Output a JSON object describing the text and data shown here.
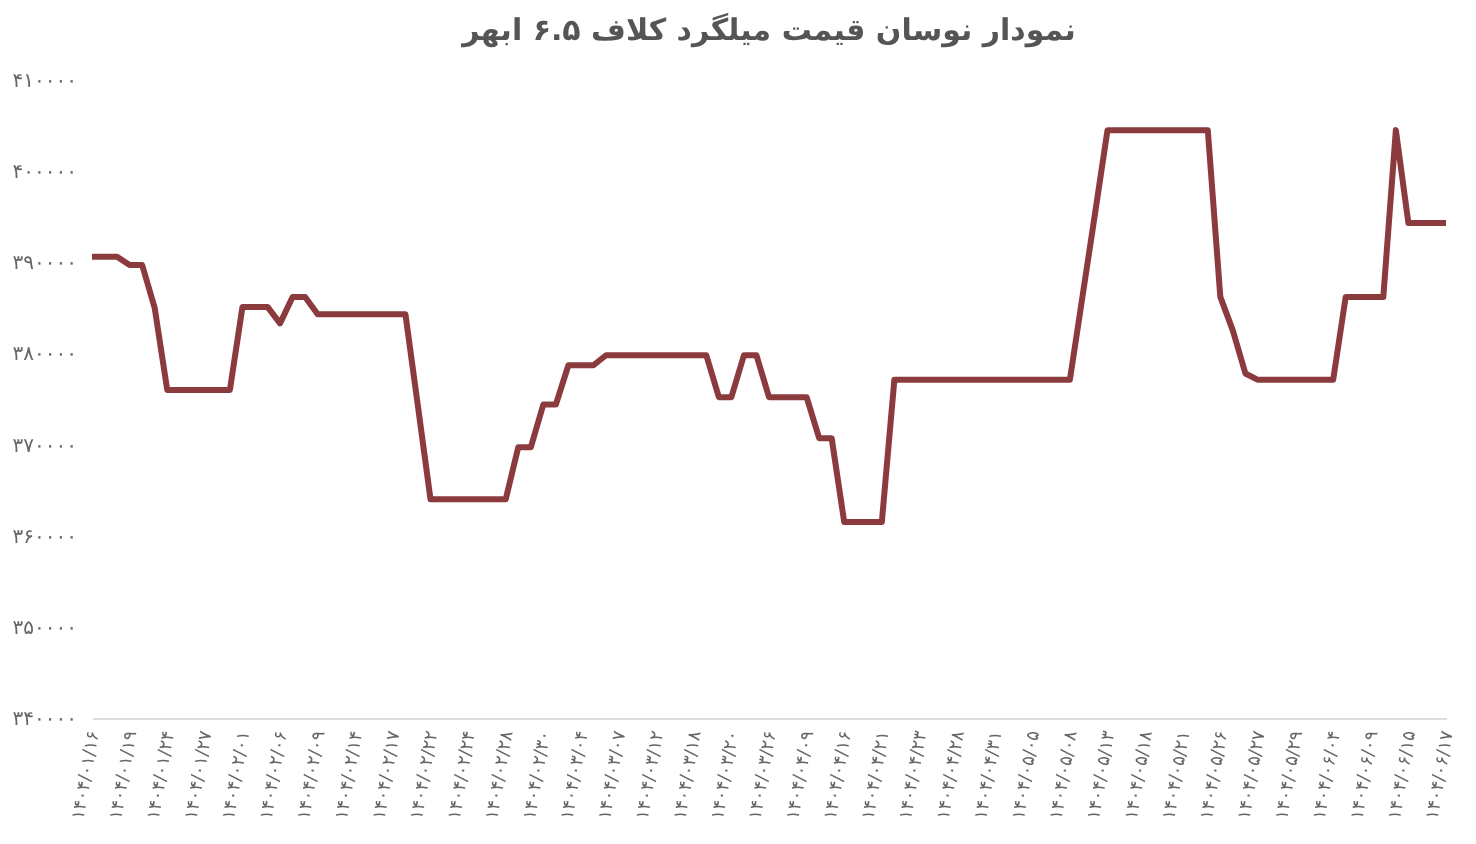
{
  "chart_data": {
    "type": "line",
    "title": "نمودار نوسان قیمت میلگرد کلاف ۶.۵  ابهر",
    "categories": [
      "۱۴۰۴/۰۱/۱۶",
      null,
      null,
      "۱۴۰۴/۰۱/۱۹",
      null,
      null,
      "۱۴۰۴/۰۱/۲۴",
      null,
      null,
      "۱۴۰۴/۰۱/۲۷",
      null,
      null,
      "۱۴۰۴/۰۲/۰۱",
      null,
      null,
      "۱۴۰۴/۰۲/۰۶",
      null,
      null,
      "۱۴۰۴/۰۲/۰۹",
      null,
      null,
      "۱۴۰۴/۰۲/۱۴",
      null,
      null,
      "۱۴۰۴/۰۲/۱۷",
      null,
      null,
      "۱۴۰۴/۰۲/۲۲",
      null,
      null,
      "۱۴۰۴/۰۲/۲۴",
      null,
      null,
      "۱۴۰۴/۰۲/۲۸",
      null,
      null,
      "۱۴۰۴/۰۲/۳۰",
      null,
      null,
      "۱۴۰۴/۰۳/۰۴",
      null,
      null,
      "۱۴۰۴/۰۳/۰۷",
      null,
      null,
      "۱۴۰۴/۰۳/۱۲",
      null,
      null,
      "۱۴۰۴/۰۳/۱۸",
      null,
      null,
      "۱۴۰۴/۰۳/۲۰",
      null,
      null,
      "۱۴۰۴/۰۳/۲۶",
      null,
      null,
      "۱۴۰۴/۰۴/۰۹",
      null,
      null,
      "۱۴۰۴/۰۴/۱۶",
      null,
      null,
      "۱۴۰۴/۰۴/۲۱",
      null,
      null,
      "۱۴۰۴/۰۴/۲۳",
      null,
      null,
      "۱۴۰۴/۰۴/۲۸",
      null,
      null,
      "۱۴۰۴/۰۴/۳۱",
      null,
      null,
      "۱۴۰۴/۰۵/۰۵",
      null,
      null,
      "۱۴۰۴/۰۵/۰۸",
      null,
      null,
      "۱۴۰۴/۰۵/۱۳",
      null,
      null,
      "۱۴۰۴/۰۵/۱۸",
      null,
      null,
      "۱۴۰۴/۰۵/۲۱",
      null,
      null,
      "۱۴۰۴/۰۵/۲۶",
      null,
      null,
      "۱۴۰۴/۰۵/۲۷",
      null,
      null,
      "۱۴۰۴/۰۵/۲۹",
      null,
      null,
      "۱۴۰۴/۰۶/۰۴",
      null,
      null,
      "۱۴۰۴/۰۶/۰۹",
      null,
      null,
      "۱۴۰۴/۰۶/۱۵",
      null,
      null,
      "۱۴۰۴/۰۶/۱۷"
    ],
    "series": [
      {
        "color": "#8b3a3e",
        "values": [
          390600,
          390600,
          390600,
          389700,
          389700,
          385000,
          376000,
          376000,
          376000,
          376000,
          376000,
          376000,
          385100,
          385100,
          385100,
          383300,
          386200,
          386200,
          384300,
          384300,
          384300,
          384300,
          384300,
          384300,
          384300,
          384300,
          374200,
          364000,
          364000,
          364000,
          364000,
          364000,
          364000,
          364000,
          369700,
          369700,
          374400,
          374400,
          378700,
          378700,
          378700,
          379800,
          379800,
          379800,
          379800,
          379800,
          379800,
          379800,
          379800,
          379800,
          375200,
          375200,
          379800,
          379800,
          375200,
          375200,
          375200,
          375200,
          370700,
          370700,
          361500,
          361500,
          361500,
          361500,
          377100,
          377100,
          377100,
          377100,
          377100,
          377100,
          377100,
          377100,
          377100,
          377100,
          377100,
          377100,
          377100,
          377100,
          377100,
          386200,
          395300,
          404500,
          404500,
          404500,
          404500,
          404500,
          404500,
          404500,
          404500,
          404500,
          386200,
          382500,
          377800,
          377100,
          377100,
          377100,
          377100,
          377100,
          377100,
          377100,
          386200,
          386200,
          386200,
          386200,
          404500,
          394300,
          394300,
          394300,
          394300
        ]
      }
    ],
    "ylim": [
      340000,
      410000
    ],
    "yticks": [
      {
        "value": 340000,
        "label": "۳۴۰۰۰۰"
      },
      {
        "value": 350000,
        "label": "۳۵۰۰۰۰"
      },
      {
        "value": 360000,
        "label": "۳۶۰۰۰۰"
      },
      {
        "value": 370000,
        "label": "۳۷۰۰۰۰"
      },
      {
        "value": 380000,
        "label": "۳۸۰۰۰۰"
      },
      {
        "value": 390000,
        "label": "۳۹۰۰۰۰"
      },
      {
        "value": 400000,
        "label": "۴۰۰۰۰۰"
      },
      {
        "value": 410000,
        "label": "۴۱۰۰۰۰"
      }
    ],
    "grid": false,
    "line_style": "solid",
    "marker": "none"
  }
}
